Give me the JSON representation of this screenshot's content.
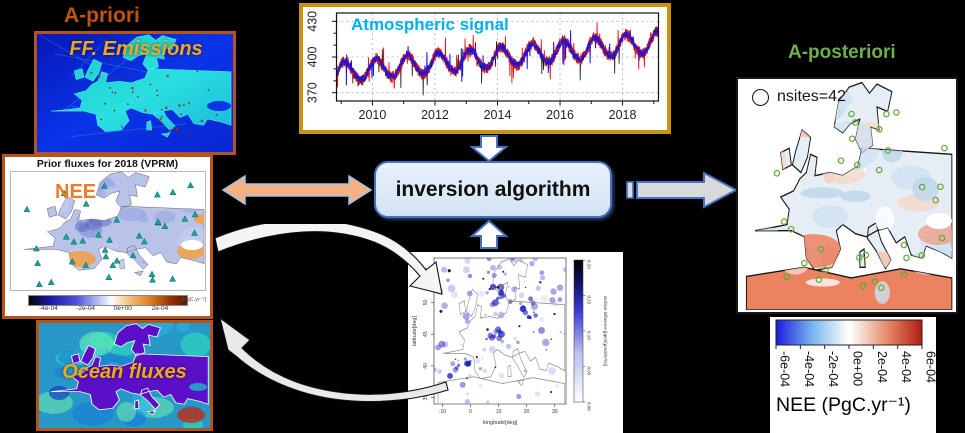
{
  "colors": {
    "background": "#000000",
    "apriori_text": "#c2520d",
    "aposteriori_text": "#6fae4b",
    "map_border": "#b4541c",
    "chart_border": "#c8940e",
    "accent_blue": "#4472c4",
    "inversion_box_fill": "#dbe9f8",
    "peach_arrow": "#f5b183",
    "gray_arrow": "#d9d9d9",
    "nee_orange": "#ee7b28",
    "flux_label_gold": "#f0a81c",
    "site_triangle": "#16a59b",
    "site_circle": "#5faa35",
    "chart_title_cyan": "#00b0f0"
  },
  "labels": {
    "apriori": "A-priori",
    "aposteriori": "A-posteriori",
    "ff_emissions": "FF. Emissions",
    "ocean_fluxes": "Ocean fluxes",
    "inversion": "inversion algorithm"
  },
  "prior_map": {
    "title": "Prior fluxes for 2018 (VPRM)",
    "nee_label": "NEE",
    "site_marker": "triangle",
    "colorbar": {
      "ticks": [
        "-4e-04",
        "-2e-04",
        "0e+00",
        "2e-04"
      ],
      "units": "[PgC.yr⁻¹]"
    }
  },
  "post_map": {
    "legend_label": "nsites=42",
    "site_marker": "circle",
    "colorbar": {
      "ticks": [
        "-6e-04",
        "-4e-04",
        "-2e-04",
        "0e+00",
        "2e-04",
        "4e-04",
        "6e-04"
      ],
      "label": "NEE (PgC.yr⁻¹)"
    }
  },
  "footprint_map": {
    "xlabel": "longitude[deg]",
    "ylabel": "latitude[deg]",
    "x_ticks": [
      -10,
      0,
      10,
      20,
      30
    ],
    "y_ticks": [
      35,
      40,
      45,
      50,
      55
    ],
    "colorbar": {
      "ticks": [
        "0.00",
        "0.05",
        "0.10",
        "0.15",
        "0.20"
      ],
      "label": "surface influence [ppm/(μmol/m²/s)]"
    }
  },
  "chart_data": {
    "id": "atmospheric-signal",
    "type": "line",
    "title": "Atmospheric signal",
    "x_ticks": [
      2010,
      2012,
      2014,
      2016,
      2018
    ],
    "x_minor_ticks": [
      2009,
      2011,
      2013,
      2015,
      2017,
      2019
    ],
    "y_ticks": [
      370,
      400,
      430
    ],
    "y_minor_step": 10,
    "x_range": [
      2008.85,
      2019.15
    ],
    "y_range": [
      363,
      437
    ],
    "grid": "dashed",
    "legend_position": "none",
    "series": [
      {
        "name": "red-series",
        "color": "#e81010",
        "noise": 5.0
      },
      {
        "name": "blue-series",
        "color": "#1616e6",
        "noise": 2.8
      }
    ],
    "signal": {
      "start_value": 388,
      "end_value": 413,
      "seasonal_amplitude": 8,
      "min_observed": 371,
      "max_observed": 433
    }
  }
}
